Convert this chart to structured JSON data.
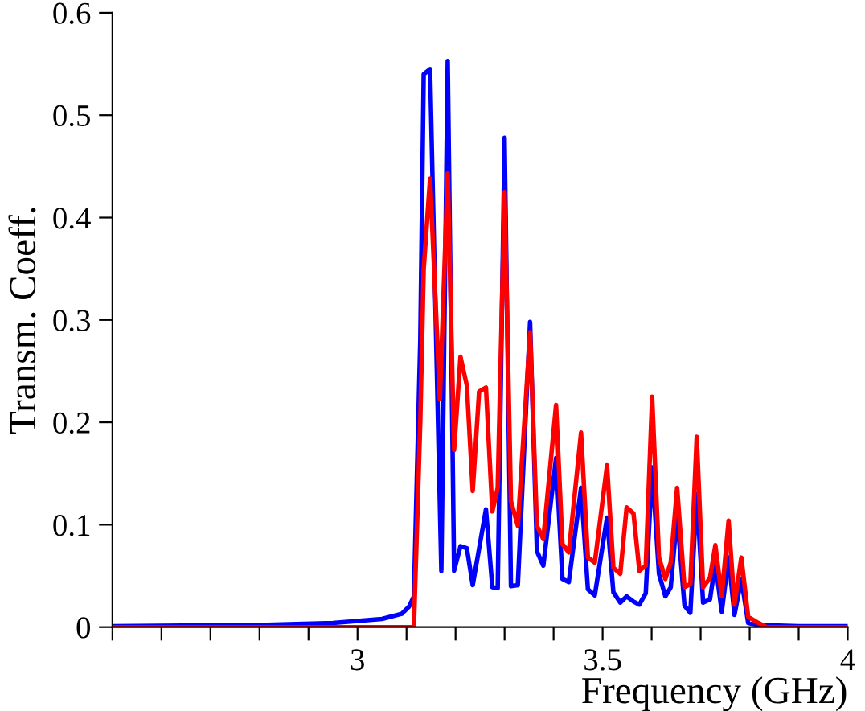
{
  "chart_data": {
    "type": "line",
    "xlabel": "Frequency (GHz)",
    "ylabel": "Transm. Coeff.",
    "xlim": [
      2.5,
      4
    ],
    "ylim": [
      0,
      0.6
    ],
    "xticks": [
      {
        "value": 2.5,
        "label": null
      },
      {
        "value": 2.6,
        "label": null
      },
      {
        "value": 2.7,
        "label": null
      },
      {
        "value": 2.8,
        "label": null
      },
      {
        "value": 2.9,
        "label": null
      },
      3,
      {
        "value": 3.1,
        "label": null
      },
      {
        "value": 3.2,
        "label": null
      },
      {
        "value": 3.3,
        "label": null
      },
      {
        "value": 3.4,
        "label": null
      },
      3.5,
      {
        "value": 3.6,
        "label": null
      },
      {
        "value": 3.7,
        "label": null
      },
      {
        "value": 3.8,
        "label": null
      },
      {
        "value": 3.9,
        "label": null
      },
      4
    ],
    "yticks": [
      0,
      0.1,
      0.2,
      0.3,
      0.4,
      0.5,
      0.6
    ],
    "grid": false,
    "legend": false,
    "marker": "none",
    "line_style": "solid",
    "series": [
      {
        "color": "#0000ff",
        "x": [
          2.5,
          2.8,
          2.95,
          3.05,
          3.09,
          3.105,
          3.115,
          3.128,
          3.135,
          3.148,
          3.171,
          3.184,
          3.197,
          3.21,
          3.223,
          3.235,
          3.262,
          3.275,
          3.286,
          3.3,
          3.313,
          3.327,
          3.352,
          3.366,
          3.379,
          3.405,
          3.418,
          3.431,
          3.456,
          3.47,
          3.484,
          3.509,
          3.522,
          3.536,
          3.549,
          3.563,
          3.575,
          3.588,
          3.601,
          3.615,
          3.628,
          3.639,
          3.652,
          3.667,
          3.679,
          3.692,
          3.705,
          3.719,
          3.73,
          3.743,
          3.757,
          3.769,
          3.783,
          3.797,
          3.818,
          3.9,
          4
        ],
        "values": [
          0.001,
          0.002,
          0.004,
          0.008,
          0.013,
          0.02,
          0.03,
          0.28,
          0.54,
          0.545,
          0.055,
          0.553,
          0.055,
          0.079,
          0.077,
          0.041,
          0.115,
          0.039,
          0.038,
          0.478,
          0.04,
          0.041,
          0.298,
          0.074,
          0.06,
          0.165,
          0.047,
          0.044,
          0.136,
          0.037,
          0.031,
          0.107,
          0.034,
          0.024,
          0.03,
          0.025,
          0.022,
          0.033,
          0.156,
          0.052,
          0.03,
          0.039,
          0.11,
          0.021,
          0.014,
          0.13,
          0.024,
          0.027,
          0.063,
          0.015,
          0.068,
          0.012,
          0.047,
          0.004,
          0.002,
          0.001,
          0.001
        ]
      },
      {
        "color": "#ff0000",
        "x": [
          2.5,
          3.115,
          3.128,
          3.135,
          3.148,
          3.168,
          3.184,
          3.197,
          3.21,
          3.223,
          3.235,
          3.248,
          3.262,
          3.275,
          3.286,
          3.3,
          3.313,
          3.327,
          3.352,
          3.366,
          3.379,
          3.405,
          3.418,
          3.431,
          3.456,
          3.47,
          3.484,
          3.509,
          3.522,
          3.536,
          3.549,
          3.563,
          3.575,
          3.588,
          3.601,
          3.615,
          3.628,
          3.639,
          3.652,
          3.667,
          3.679,
          3.692,
          3.705,
          3.719,
          3.73,
          3.743,
          3.757,
          3.769,
          3.783,
          3.797,
          3.818,
          3.835,
          4
        ],
        "values": [
          0,
          0,
          0.2,
          0.35,
          0.438,
          0.223,
          0.443,
          0.173,
          0.264,
          0.236,
          0.133,
          0.23,
          0.234,
          0.113,
          0.136,
          0.425,
          0.123,
          0.099,
          0.288,
          0.099,
          0.086,
          0.217,
          0.081,
          0.073,
          0.19,
          0.068,
          0.063,
          0.158,
          0.058,
          0.052,
          0.117,
          0.111,
          0.055,
          0.06,
          0.225,
          0.068,
          0.047,
          0.063,
          0.136,
          0.039,
          0.042,
          0.186,
          0.039,
          0.048,
          0.08,
          0.03,
          0.104,
          0.022,
          0.068,
          0.01,
          0.004,
          0,
          0
        ]
      }
    ]
  }
}
